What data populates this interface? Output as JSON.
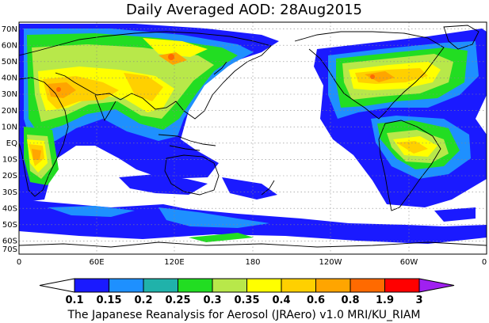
{
  "title": "Daily Averaged AOD: 28Aug2015",
  "lat_labels": [
    "70N",
    "60N",
    "50N",
    "40N",
    "30N",
    "20N",
    "10N",
    "EQ",
    "10S",
    "20S",
    "30S",
    "40S",
    "50S",
    "60S",
    "70S"
  ],
  "lon_labels": [
    "0",
    "60E",
    "120E",
    "180",
    "120W",
    "60W",
    "0"
  ],
  "colorbar": {
    "colors": [
      "#ffffff",
      "#1a1aff",
      "#1e90ff",
      "#20b2aa",
      "#22dd22",
      "#b8e84a",
      "#ffff00",
      "#ffd000",
      "#ffa500",
      "#ff6a00",
      "#ff0000",
      "#a020f0"
    ],
    "labels": [
      "0.1",
      "0.15",
      "0.2",
      "0.25",
      "0.3",
      "0.35",
      "0.4",
      "0.6",
      "0.8",
      "1.9",
      "3"
    ]
  },
  "credit": "The Japanese Reanalysis for Aerosol (JRAero) v1.0 MRI/KU_RIAM"
}
